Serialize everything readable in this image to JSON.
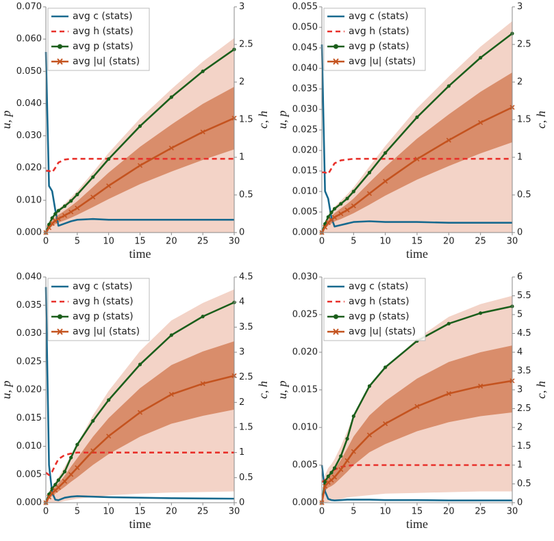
{
  "chart_data": [
    {
      "type": "line",
      "xlabel": "time",
      "ylabel": "u, p",
      "y2label": "c, h",
      "x": [
        0,
        0.5,
        1,
        1.5,
        2,
        3,
        4,
        5,
        7.5,
        10,
        15,
        20,
        25,
        30
      ],
      "xlim": [
        0,
        30
      ],
      "xticks": [
        0,
        5,
        10,
        15,
        20,
        25,
        30
      ],
      "ylim": [
        0,
        0.07
      ],
      "yticks": [
        {
          "value": 0,
          "label": "0.000"
        },
        {
          "value": 0.01,
          "label": "0.010"
        },
        {
          "value": 0.02,
          "label": "0.020"
        },
        {
          "value": 0.03,
          "label": "0.030"
        },
        {
          "value": 0.04,
          "label": "0.040"
        },
        {
          "value": 0.05,
          "label": "0.050"
        },
        {
          "value": 0.06,
          "label": "0.060"
        },
        {
          "value": 0.07,
          "label": "0.070"
        }
      ],
      "y2lim": [
        0,
        3
      ],
      "y2ticks": [
        0,
        0.5,
        1,
        1.5,
        2,
        2.5,
        3
      ],
      "legend": "upper left",
      "bands": [
        {
          "color": "#f3d3c7",
          "lower": [
            0,
            0,
            0,
            0,
            0,
            0,
            0,
            0,
            0,
            0,
            0,
            0,
            0,
            0
          ],
          "upper": [
            0,
            0.0026,
            0.0048,
            0.0061,
            0.0073,
            0.009,
            0.0109,
            0.0129,
            0.0187,
            0.0247,
            0.0354,
            0.0445,
            0.053,
            0.0603
          ]
        },
        {
          "color": "#d98d6b",
          "lower": [
            0,
            0.0011,
            0.002,
            0.0026,
            0.0031,
            0.0038,
            0.0046,
            0.0055,
            0.0079,
            0.0104,
            0.015,
            0.0189,
            0.0225,
            0.0258
          ],
          "upper": [
            0,
            0.0019,
            0.0036,
            0.0046,
            0.0055,
            0.0068,
            0.0082,
            0.0097,
            0.0141,
            0.0186,
            0.0266,
            0.0335,
            0.0399,
            0.0452
          ]
        }
      ],
      "series": [
        {
          "name": "avg c (stats)",
          "color": "#17698e",
          "axis": "y2",
          "linestyle": "solid",
          "values": [
            2.4,
            0.62,
            0.55,
            0.3,
            0.09,
            0.12,
            0.15,
            0.17,
            0.18,
            0.17,
            0.17,
            0.17,
            0.17,
            0.17
          ]
        },
        {
          "name": "avg h (stats)",
          "color": "#e8302a",
          "axis": "y2",
          "linestyle": "dashed",
          "values": [
            0.82,
            0.82,
            0.8,
            0.86,
            0.93,
            0.97,
            0.98,
            0.98,
            0.98,
            0.98,
            0.98,
            0.98,
            0.98,
            0.98
          ]
        },
        {
          "name": "avg p (stats)",
          "color": "#1b5e1b",
          "axis": "y",
          "linestyle": "solid",
          "marker": "circle",
          "values": [
            0,
            0.0025,
            0.0045,
            0.0058,
            0.0068,
            0.0082,
            0.0098,
            0.0118,
            0.0172,
            0.0228,
            0.033,
            0.042,
            0.05,
            0.0568
          ]
        },
        {
          "name": "avg |u| (stats)",
          "color": "#c4531f",
          "axis": "y",
          "linestyle": "solid",
          "marker": "x",
          "values": [
            0,
            0.0015,
            0.0028,
            0.0036,
            0.0043,
            0.0053,
            0.0064,
            0.0076,
            0.011,
            0.0145,
            0.0208,
            0.0262,
            0.0312,
            0.0355
          ]
        }
      ]
    },
    {
      "type": "line",
      "xlabel": "time",
      "ylabel": "u, p",
      "y2label": "c, h",
      "x": [
        0,
        0.5,
        1,
        1.5,
        2,
        3,
        4,
        5,
        7.5,
        10,
        15,
        20,
        25,
        30
      ],
      "xlim": [
        0,
        30
      ],
      "xticks": [
        0,
        5,
        10,
        15,
        20,
        25,
        30
      ],
      "ylim": [
        0,
        0.055
      ],
      "yticks": [
        {
          "value": 0,
          "label": "0.000"
        },
        {
          "value": 0.005,
          "label": "0.005"
        },
        {
          "value": 0.01,
          "label": "0.010"
        },
        {
          "value": 0.015,
          "label": "0.015"
        },
        {
          "value": 0.02,
          "label": "0.020"
        },
        {
          "value": 0.025,
          "label": "0.025"
        },
        {
          "value": 0.03,
          "label": "0.030"
        },
        {
          "value": 0.035,
          "label": "0.035"
        },
        {
          "value": 0.04,
          "label": "0.040"
        },
        {
          "value": 0.045,
          "label": "0.045"
        },
        {
          "value": 0.05,
          "label": "0.050"
        },
        {
          "value": 0.055,
          "label": "0.055"
        }
      ],
      "y2lim": [
        0,
        3
      ],
      "y2ticks": [
        0,
        0.5,
        1,
        1.5,
        2,
        2.5,
        3
      ],
      "legend": "upper left",
      "bands": [
        {
          "color": "#f3d3c7",
          "lower": [
            0,
            0,
            0,
            0,
            0,
            0,
            0,
            0,
            0,
            0,
            0,
            0,
            0,
            0
          ],
          "upper": [
            0,
            0.0022,
            0.0041,
            0.0052,
            0.0063,
            0.0078,
            0.0093,
            0.011,
            0.0161,
            0.0211,
            0.0303,
            0.038,
            0.0453,
            0.0515
          ]
        },
        {
          "color": "#d98d6b",
          "lower": [
            0,
            0.0009,
            0.0017,
            0.0022,
            0.0027,
            0.0033,
            0.004,
            0.0047,
            0.0068,
            0.009,
            0.0129,
            0.0162,
            0.0193,
            0.022
          ],
          "upper": [
            0,
            0.0017,
            0.0031,
            0.004,
            0.0047,
            0.0059,
            0.007,
            0.0083,
            0.0122,
            0.016,
            0.0229,
            0.0288,
            0.0343,
            0.039
          ]
        }
      ],
      "series": [
        {
          "name": "avg c (stats)",
          "color": "#17698e",
          "axis": "y2",
          "linestyle": "solid",
          "values": [
            2.5,
            0.55,
            0.45,
            0.2,
            0.08,
            0.1,
            0.12,
            0.14,
            0.15,
            0.14,
            0.14,
            0.13,
            0.13,
            0.13
          ]
        },
        {
          "name": "avg h (stats)",
          "color": "#e8302a",
          "axis": "y2",
          "linestyle": "dashed",
          "values": [
            0.8,
            0.8,
            0.78,
            0.85,
            0.92,
            0.96,
            0.97,
            0.98,
            0.98,
            0.98,
            0.98,
            0.98,
            0.98,
            0.98
          ]
        },
        {
          "name": "avg p (stats)",
          "color": "#1b5e1b",
          "axis": "y",
          "linestyle": "solid",
          "marker": "circle",
          "values": [
            0,
            0.0021,
            0.0038,
            0.0049,
            0.0058,
            0.007,
            0.0083,
            0.01,
            0.0146,
            0.0194,
            0.0281,
            0.0357,
            0.0426,
            0.0485
          ]
        },
        {
          "name": "avg |u| (stats)",
          "color": "#c4531f",
          "axis": "y",
          "linestyle": "solid",
          "marker": "x",
          "values": [
            0,
            0.0013,
            0.0024,
            0.0031,
            0.0037,
            0.0046,
            0.0055,
            0.0065,
            0.0095,
            0.0125,
            0.0179,
            0.0225,
            0.0268,
            0.0305
          ]
        }
      ]
    },
    {
      "type": "line",
      "xlabel": "time",
      "ylabel": "u, p",
      "y2label": "c, h",
      "x": [
        0,
        0.5,
        1,
        1.5,
        2,
        3,
        4,
        5,
        7.5,
        10,
        15,
        20,
        25,
        30
      ],
      "xlim": [
        0,
        30
      ],
      "xticks": [
        0,
        5,
        10,
        15,
        20,
        25,
        30
      ],
      "ylim": [
        0,
        0.04
      ],
      "yticks": [
        {
          "value": 0,
          "label": "0.000"
        },
        {
          "value": 0.005,
          "label": "0.005"
        },
        {
          "value": 0.01,
          "label": "0.010"
        },
        {
          "value": 0.015,
          "label": "0.015"
        },
        {
          "value": 0.02,
          "label": "0.020"
        },
        {
          "value": 0.025,
          "label": "0.025"
        },
        {
          "value": 0.03,
          "label": "0.030"
        },
        {
          "value": 0.035,
          "label": "0.035"
        },
        {
          "value": 0.04,
          "label": "0.040"
        }
      ],
      "y2lim": [
        0,
        4.5
      ],
      "y2ticks": [
        0,
        0.5,
        1,
        1.5,
        2,
        2.5,
        3,
        3.5,
        4,
        4.5
      ],
      "legend": "upper left",
      "bands": [
        {
          "color": "#f3d3c7",
          "lower": [
            0,
            0,
            0,
            0,
            0,
            0.0003,
            0.0005,
            0.0007,
            0.001,
            0.0013,
            0.0016,
            0.0018,
            0.0019,
            0.002
          ],
          "upper": [
            0,
            0.0017,
            0.0029,
            0.0037,
            0.0045,
            0.0064,
            0.0084,
            0.0104,
            0.0155,
            0.0198,
            0.0269,
            0.0323,
            0.0354,
            0.0378
          ]
        },
        {
          "color": "#d98d6b",
          "lower": [
            0,
            0.0007,
            0.0012,
            0.0016,
            0.002,
            0.0028,
            0.0037,
            0.0045,
            0.0067,
            0.0086,
            0.0117,
            0.014,
            0.0154,
            0.0165
          ],
          "upper": [
            0,
            0.0013,
            0.0022,
            0.0028,
            0.0034,
            0.0048,
            0.0064,
            0.0079,
            0.0117,
            0.015,
            0.0203,
            0.0244,
            0.0268,
            0.0286
          ]
        }
      ],
      "series": [
        {
          "name": "avg c (stats)",
          "color": "#17698e",
          "axis": "y2",
          "linestyle": "solid",
          "values": [
            4.3,
            0.75,
            0.2,
            0.06,
            0.05,
            0.1,
            0.12,
            0.13,
            0.12,
            0.11,
            0.1,
            0.09,
            0.085,
            0.08
          ]
        },
        {
          "name": "avg h (stats)",
          "color": "#e8302a",
          "axis": "y2",
          "linestyle": "dashed",
          "values": [
            0.6,
            0.55,
            0.62,
            0.75,
            0.87,
            0.95,
            0.98,
            1,
            1,
            1,
            1,
            1,
            1,
            1
          ]
        },
        {
          "name": "avg p (stats)",
          "color": "#1b5e1b",
          "axis": "y",
          "linestyle": "solid",
          "marker": "circle",
          "values": [
            0,
            0.0015,
            0.0025,
            0.0032,
            0.004,
            0.0055,
            0.008,
            0.0103,
            0.0145,
            0.0182,
            0.0245,
            0.0297,
            0.033,
            0.0355
          ]
        },
        {
          "name": "avg |u| (stats)",
          "color": "#c4531f",
          "axis": "y",
          "linestyle": "solid",
          "marker": "x",
          "values": [
            0,
            0.001,
            0.0017,
            0.0022,
            0.0027,
            0.0038,
            0.005,
            0.0062,
            0.0092,
            0.0118,
            0.016,
            0.0192,
            0.0211,
            0.0225
          ]
        }
      ]
    },
    {
      "type": "line",
      "xlabel": "time",
      "ylabel": "u, p",
      "y2label": "c, h",
      "x": [
        0,
        0.5,
        1,
        1.5,
        2,
        3,
        4,
        5,
        7.5,
        10,
        15,
        20,
        25,
        30
      ],
      "xlim": [
        0,
        30
      ],
      "xticks": [
        0,
        5,
        10,
        15,
        20,
        25,
        30
      ],
      "ylim": [
        0,
        0.03
      ],
      "yticks": [
        {
          "value": 0,
          "label": "0.000"
        },
        {
          "value": 0.005,
          "label": "0.005"
        },
        {
          "value": 0.01,
          "label": "0.010"
        },
        {
          "value": 0.015,
          "label": "0.015"
        },
        {
          "value": 0.02,
          "label": "0.020"
        },
        {
          "value": 0.025,
          "label": "0.025"
        },
        {
          "value": 0.03,
          "label": "0.030"
        }
      ],
      "y2lim": [
        0,
        6
      ],
      "y2ticks": [
        0,
        0.5,
        1,
        1.5,
        2,
        2.5,
        3,
        3.5,
        4,
        4.5,
        5,
        5.5,
        6
      ],
      "legend": "upper left",
      "bands": [
        {
          "color": "#f3d3c7",
          "lower": [
            0,
            0,
            0.0001,
            0.0002,
            0.0003,
            0.0005,
            0.0007,
            0.0008,
            0.001,
            0.0012,
            0.0013,
            0.0014,
            0.0015,
            0.0015
          ],
          "upper": [
            0,
            0.0037,
            0.0046,
            0.0051,
            0.0058,
            0.0075,
            0.0095,
            0.0116,
            0.0153,
            0.0179,
            0.0218,
            0.0247,
            0.0264,
            0.0275
          ]
        },
        {
          "color": "#d98d6b",
          "lower": [
            0,
            0.0016,
            0.002,
            0.0022,
            0.0025,
            0.0033,
            0.0041,
            0.005,
            0.0067,
            0.0078,
            0.0095,
            0.0107,
            0.0115,
            0.012
          ],
          "upper": [
            0,
            0.0028,
            0.0035,
            0.0039,
            0.0044,
            0.0057,
            0.0072,
            0.0088,
            0.0116,
            0.0135,
            0.0165,
            0.0187,
            0.02,
            0.0209
          ]
        }
      ],
      "series": [
        {
          "name": "avg c (stats)",
          "color": "#17698e",
          "axis": "y2",
          "linestyle": "solid",
          "values": [
            1,
            0.3,
            0.1,
            0.07,
            0.06,
            0.07,
            0.08,
            0.08,
            0.08,
            0.07,
            0.07,
            0.06,
            0.06,
            0.06
          ]
        },
        {
          "name": "avg h (stats)",
          "color": "#e8302a",
          "axis": "y2",
          "linestyle": "dashed",
          "values": [
            0.55,
            0.6,
            0.7,
            0.8,
            0.88,
            0.95,
            0.98,
            1,
            1,
            1,
            1,
            1,
            1,
            1
          ]
        },
        {
          "name": "avg p (stats)",
          "color": "#1b5e1b",
          "axis": "y",
          "linestyle": "solid",
          "marker": "circle",
          "values": [
            0,
            0.0028,
            0.0035,
            0.004,
            0.0046,
            0.0062,
            0.0085,
            0.0115,
            0.0155,
            0.018,
            0.0215,
            0.0238,
            0.0252,
            0.0261
          ]
        },
        {
          "name": "avg |u| (stats)",
          "color": "#c4531f",
          "axis": "y",
          "linestyle": "solid",
          "marker": "x",
          "values": [
            0,
            0.0022,
            0.0027,
            0.003,
            0.0034,
            0.0044,
            0.0056,
            0.0068,
            0.009,
            0.0105,
            0.0128,
            0.0145,
            0.0155,
            0.0162
          ]
        }
      ]
    }
  ]
}
